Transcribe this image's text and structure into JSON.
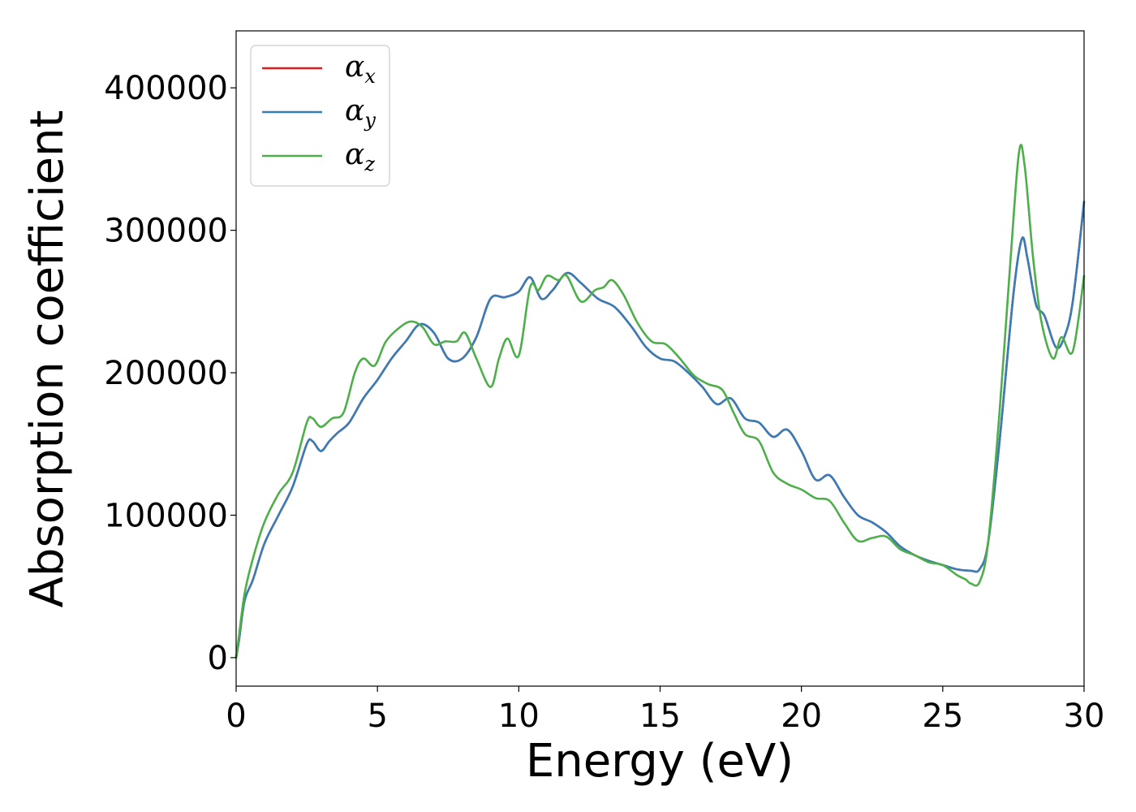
{
  "chart_data": {
    "type": "line",
    "title": "",
    "xlabel": "Energy (eV)",
    "ylabel": "Absorption coefficient",
    "xlim": [
      0,
      30
    ],
    "ylim": [
      -20000,
      440000
    ],
    "xticks": [
      0,
      5,
      10,
      15,
      20,
      25,
      30
    ],
    "xtick_labels": [
      "0",
      "5",
      "10",
      "15",
      "20",
      "25",
      "30"
    ],
    "yticks": [
      0,
      100000,
      200000,
      300000,
      400000
    ],
    "ytick_labels": [
      "0",
      "100000",
      "200000",
      "300000",
      "400000"
    ],
    "grid": false,
    "legend_position": "top-left",
    "series": [
      {
        "name": "α",
        "sub": "x",
        "color": "#e41a1c",
        "x": [
          0,
          0.1,
          0.3,
          0.6,
          1.0,
          1.5,
          2.0,
          2.5,
          2.7,
          3.0,
          3.3,
          3.6,
          4.0,
          4.5,
          5.0,
          5.5,
          6.0,
          6.5,
          7.0,
          7.5,
          8.0,
          8.5,
          9.0,
          9.5,
          10.0,
          10.4,
          10.8,
          11.2,
          11.7,
          12.2,
          12.8,
          13.4,
          14.0,
          14.5,
          15.0,
          15.5,
          16.0,
          16.5,
          17.0,
          17.5,
          18.0,
          18.5,
          19.0,
          19.5,
          20.0,
          20.5,
          21.0,
          21.5,
          22.0,
          22.5,
          23.0,
          23.5,
          24.0,
          24.5,
          25.0,
          25.5,
          26.0,
          26.3,
          26.6,
          27.0,
          27.5,
          27.8,
          28.0,
          28.3,
          28.6,
          29.0,
          29.3,
          29.6,
          30.0
        ],
        "y": [
          0,
          12000,
          40000,
          55000,
          80000,
          100000,
          120000,
          150000,
          152000,
          145000,
          152000,
          158000,
          165000,
          182000,
          195000,
          210000,
          222000,
          234000,
          228000,
          210000,
          210000,
          225000,
          252000,
          253000,
          257000,
          267000,
          252000,
          258000,
          270000,
          263000,
          252000,
          246000,
          232000,
          218000,
          210000,
          208000,
          200000,
          190000,
          178000,
          182000,
          168000,
          165000,
          155000,
          160000,
          145000,
          125000,
          128000,
          113000,
          100000,
          95000,
          88000,
          78000,
          72000,
          68000,
          65000,
          62000,
          61000,
          62000,
          80000,
          150000,
          255000,
          294000,
          280000,
          248000,
          240000,
          218000,
          225000,
          250000,
          320000
        ]
      },
      {
        "name": "α",
        "sub": "y",
        "color": "#377eb8",
        "x": [
          0,
          0.1,
          0.3,
          0.6,
          1.0,
          1.5,
          2.0,
          2.5,
          2.7,
          3.0,
          3.3,
          3.6,
          4.0,
          4.5,
          5.0,
          5.5,
          6.0,
          6.5,
          7.0,
          7.5,
          8.0,
          8.5,
          9.0,
          9.5,
          10.0,
          10.4,
          10.8,
          11.2,
          11.7,
          12.2,
          12.8,
          13.4,
          14.0,
          14.5,
          15.0,
          15.5,
          16.0,
          16.5,
          17.0,
          17.5,
          18.0,
          18.5,
          19.0,
          19.5,
          20.0,
          20.5,
          21.0,
          21.5,
          22.0,
          22.5,
          23.0,
          23.5,
          24.0,
          24.5,
          25.0,
          25.5,
          26.0,
          26.3,
          26.6,
          27.0,
          27.5,
          27.8,
          28.0,
          28.3,
          28.6,
          29.0,
          29.3,
          29.6,
          30.0
        ],
        "y": [
          0,
          12000,
          40000,
          55000,
          80000,
          100000,
          120000,
          150000,
          152000,
          145000,
          152000,
          158000,
          165000,
          182000,
          195000,
          210000,
          222000,
          234000,
          228000,
          210000,
          210000,
          225000,
          252000,
          253000,
          257000,
          267000,
          252000,
          258000,
          270000,
          263000,
          252000,
          246000,
          232000,
          218000,
          210000,
          208000,
          200000,
          190000,
          178000,
          182000,
          168000,
          165000,
          155000,
          160000,
          145000,
          125000,
          128000,
          113000,
          100000,
          95000,
          88000,
          78000,
          72000,
          68000,
          65000,
          62000,
          61000,
          62000,
          80000,
          150000,
          255000,
          294000,
          280000,
          248000,
          240000,
          218000,
          225000,
          250000,
          320000
        ]
      },
      {
        "name": "α",
        "sub": "z",
        "color": "#4daf4a",
        "x": [
          0,
          0.1,
          0.3,
          0.6,
          1.0,
          1.5,
          2.0,
          2.5,
          2.7,
          3.0,
          3.4,
          3.8,
          4.2,
          4.5,
          4.9,
          5.3,
          5.8,
          6.2,
          6.6,
          7.0,
          7.4,
          7.8,
          8.1,
          8.5,
          9.0,
          9.3,
          9.6,
          10.0,
          10.4,
          10.7,
          11.0,
          11.4,
          11.7,
          12.2,
          12.7,
          13.0,
          13.3,
          13.7,
          14.2,
          14.7,
          15.2,
          15.7,
          16.2,
          16.7,
          17.2,
          17.6,
          18.0,
          18.5,
          19.0,
          19.5,
          20.0,
          20.5,
          21.0,
          21.5,
          22.0,
          22.5,
          23.0,
          23.5,
          24.0,
          24.5,
          25.0,
          25.5,
          25.8,
          26.0,
          26.3,
          26.6,
          27.0,
          27.4,
          27.7,
          27.9,
          28.2,
          28.5,
          28.9,
          29.2,
          29.6,
          30.0
        ],
        "y": [
          0,
          15000,
          45000,
          70000,
          95000,
          115000,
          130000,
          165000,
          168000,
          162000,
          168000,
          172000,
          200000,
          210000,
          205000,
          222000,
          232000,
          236000,
          232000,
          220000,
          222000,
          222000,
          228000,
          210000,
          190000,
          210000,
          224000,
          212000,
          260000,
          258000,
          268000,
          265000,
          268000,
          250000,
          258000,
          260000,
          265000,
          255000,
          235000,
          222000,
          220000,
          210000,
          198000,
          192000,
          188000,
          172000,
          157000,
          152000,
          130000,
          122000,
          118000,
          112000,
          110000,
          95000,
          82000,
          84000,
          85000,
          76000,
          72000,
          67000,
          65000,
          58000,
          55000,
          52000,
          53000,
          80000,
          170000,
          280000,
          355000,
          345000,
          280000,
          235000,
          210000,
          225000,
          215000,
          268000
        ]
      }
    ]
  }
}
